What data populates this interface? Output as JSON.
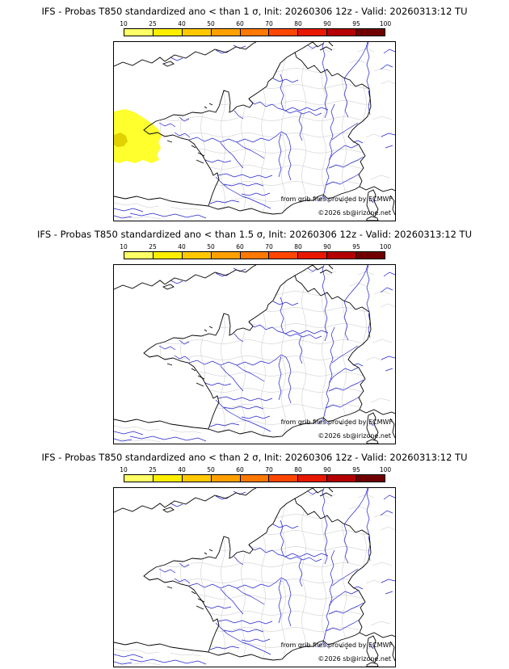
{
  "panels": [
    {
      "title": "IFS - Probas T850  standardized ano < than 1 σ, Init: 20260306 12z - Valid: 20260313:12 TU",
      "sigma_threshold": "1",
      "has_shading": true
    },
    {
      "title": "IFS - Probas T850  standardized ano < than 1.5 σ, Init: 20260306 12z - Valid: 20260313:12 TU",
      "sigma_threshold": "1.5",
      "has_shading": false
    },
    {
      "title": "IFS - Probas T850  standardized ano < than 2 σ, Init: 20260306 12z - Valid: 20260313:12 TU",
      "sigma_threshold": "2",
      "has_shading": false
    }
  ],
  "colorbar": {
    "ticks": [
      "10",
      "25",
      "40",
      "50",
      "60",
      "70",
      "80",
      "90",
      "95",
      "100"
    ],
    "colors": [
      "#ffff66",
      "#ffee00",
      "#ffc800",
      "#ffa000",
      "#ff7800",
      "#ff4600",
      "#e81800",
      "#b40000",
      "#700000"
    ]
  },
  "map": {
    "region": "France",
    "credits": {
      "provider": "from grib files provided by ECMWF",
      "copyright": "©2026 sb@irizone.net"
    },
    "colors": {
      "coastline": "#000000",
      "river": "#2020cc",
      "boundaries": "#c5c5c5",
      "shading": "#ffff2e",
      "shading_dark": "#e0d200",
      "sea": "#ffffff"
    }
  }
}
